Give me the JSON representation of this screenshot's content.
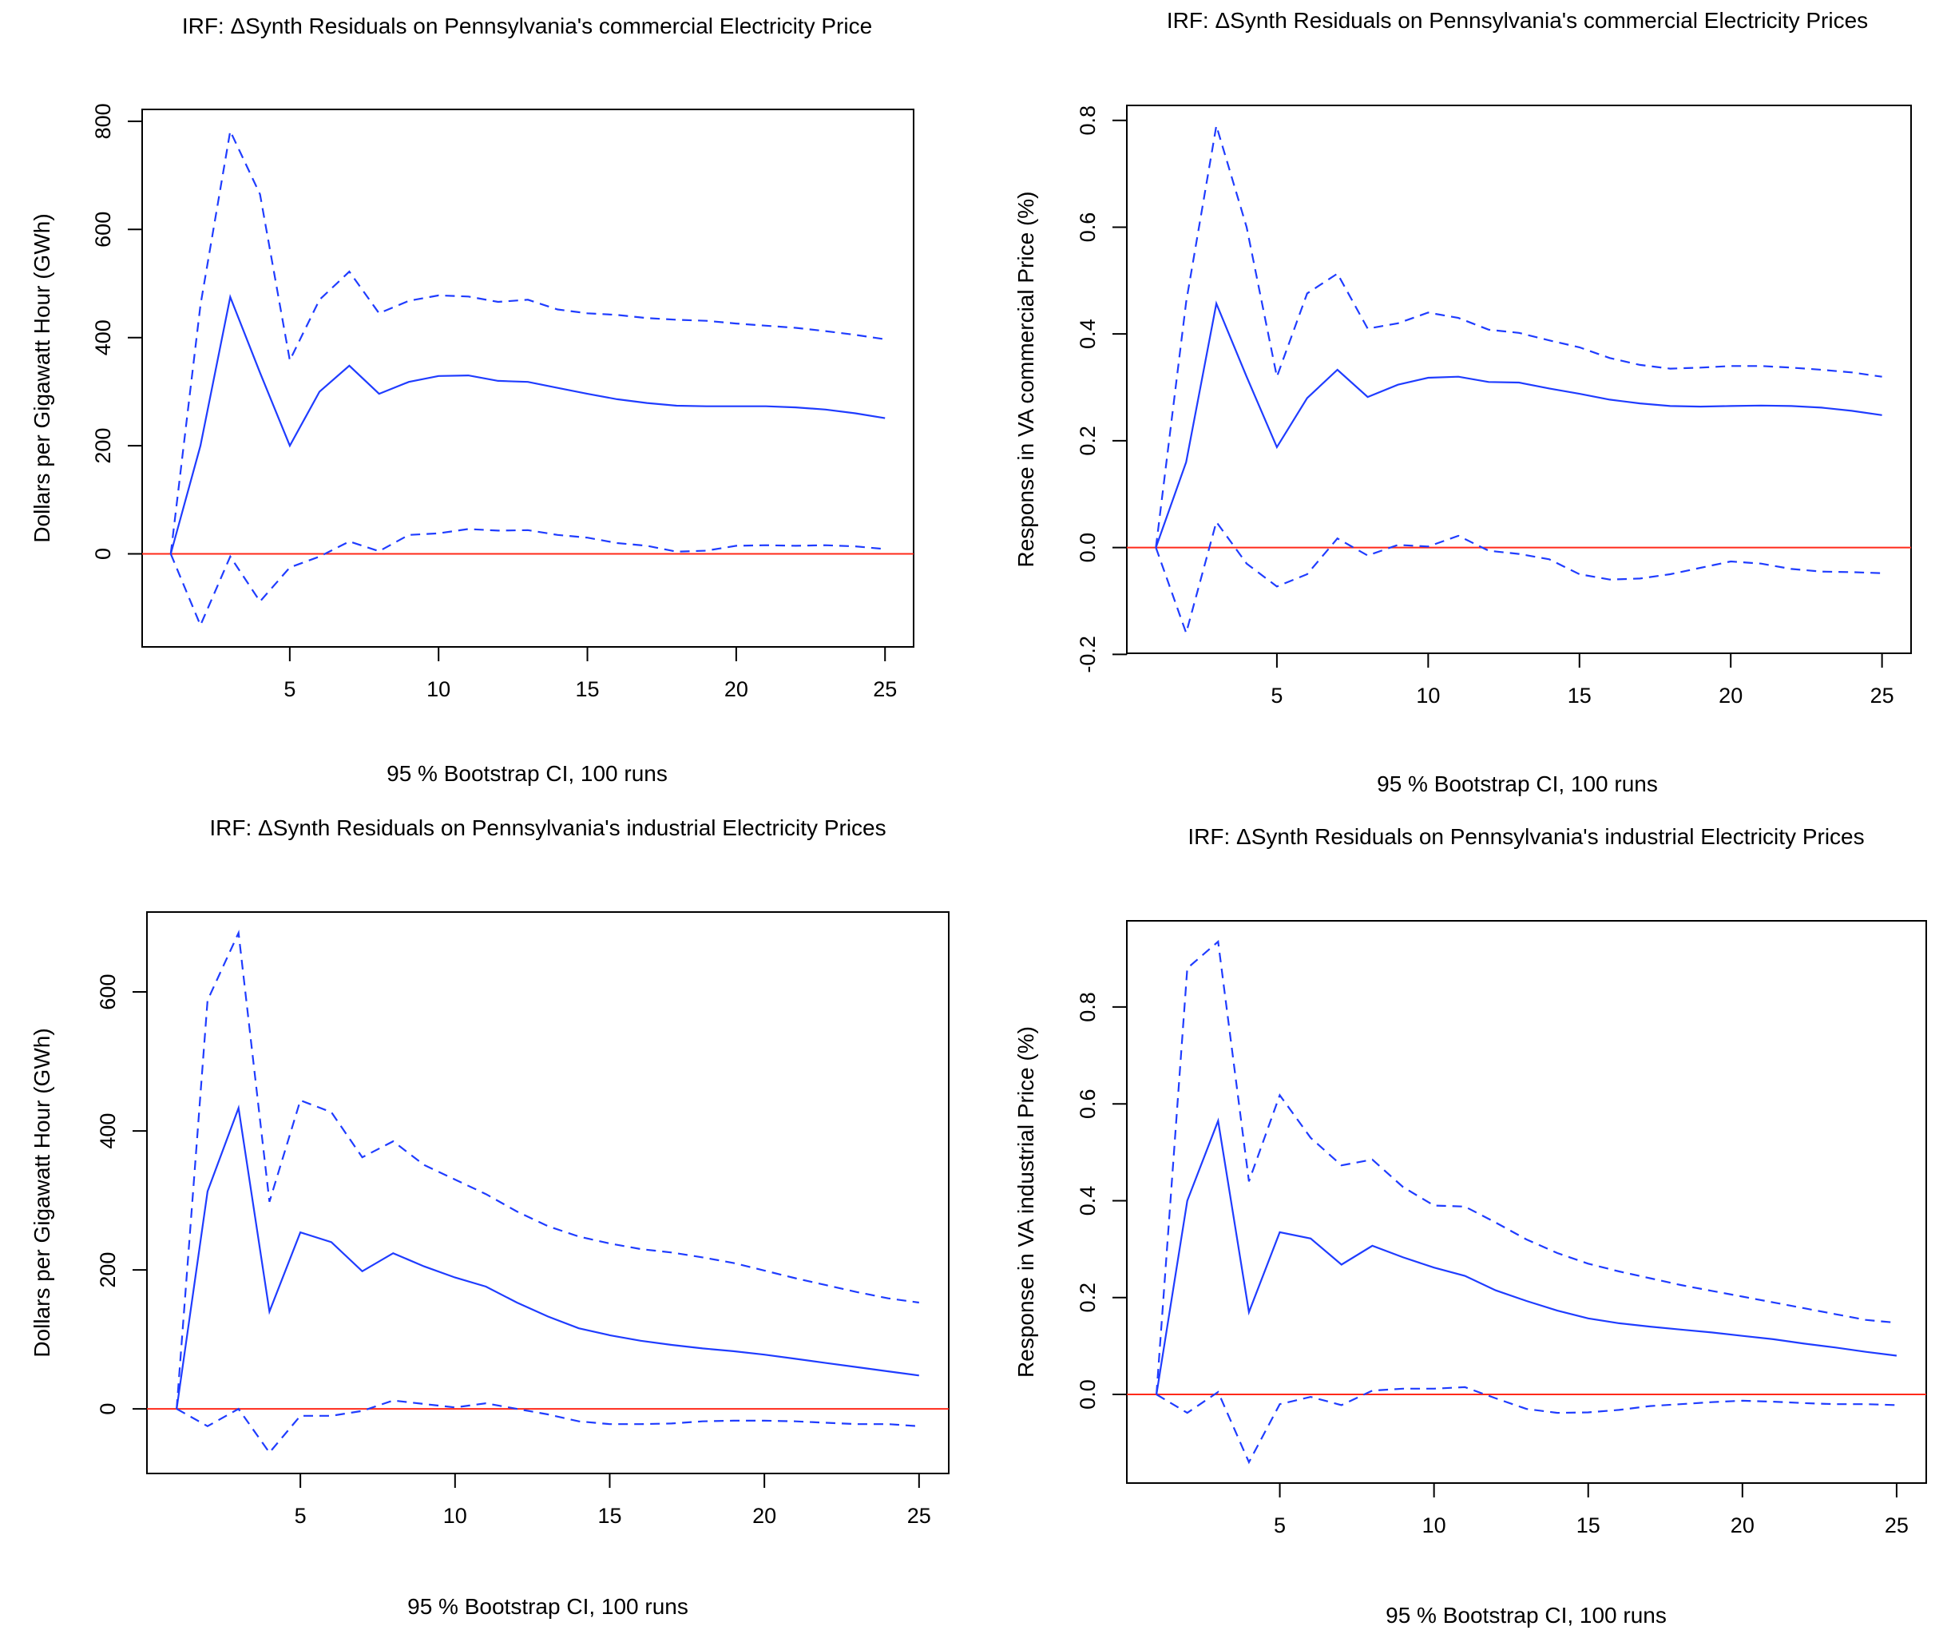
{
  "colors": {
    "irf": "#1f3cff",
    "ci": "#1f3cff",
    "zero": "#ff2a1a",
    "axis": "#000000"
  },
  "chart_data": [
    {
      "type": "line",
      "title": "IRF: ΔSynth Residuals on Pennsylvania's commercial Electricity Price",
      "xlabel": "95 % Bootstrap CI,  100 runs",
      "ylabel": "Dollars per Gigawatt Hour (GWh)",
      "xlim": [
        1,
        25
      ],
      "ylim": [
        -172,
        822
      ],
      "xticks": [
        5,
        10,
        15,
        20,
        25
      ],
      "yticks": [
        0,
        200,
        400,
        600,
        800
      ],
      "yticklabels": [
        "0",
        "200",
        "400",
        "600",
        "800"
      ],
      "x": [
        1,
        2,
        3,
        4,
        5,
        6,
        7,
        8,
        9,
        10,
        11,
        12,
        13,
        14,
        15,
        16,
        17,
        18,
        19,
        20,
        21,
        22,
        23,
        24,
        25
      ],
      "series": [
        {
          "style": "solid",
          "values": [
            0,
            200,
            475,
            335,
            200,
            300,
            348,
            296,
            318,
            329,
            330,
            320,
            318,
            307,
            296,
            286,
            279,
            274,
            273,
            273,
            273,
            271,
            267,
            260,
            251
          ]
        },
        {
          "style": "dashed",
          "values": [
            0,
            460,
            782,
            665,
            358,
            470,
            522,
            445,
            468,
            478,
            476,
            466,
            470,
            452,
            445,
            442,
            436,
            433,
            431,
            426,
            422,
            418,
            412,
            405,
            397
          ]
        },
        {
          "style": "dashed",
          "values": [
            0,
            -132,
            -5,
            -88,
            -25,
            -5,
            23,
            5,
            35,
            38,
            46,
            43,
            44,
            35,
            30,
            20,
            15,
            4,
            6,
            15,
            16,
            15,
            16,
            14,
            9
          ]
        }
      ],
      "hline": 0
    },
    {
      "type": "line",
      "title": "IRF: ΔSynth Residuals on Pennsylvania's commercial Electricity Prices",
      "xlabel": "95 % Bootstrap CI,  100 runs",
      "ylabel": "Response in VA commercial Price (%)",
      "xlim": [
        1,
        25
      ],
      "ylim": [
        -0.198,
        0.828
      ],
      "xticks": [
        5,
        10,
        15,
        20,
        25
      ],
      "yticks": [
        -0.2,
        0,
        0.2,
        0.4,
        0.6,
        0.8
      ],
      "yticklabels": [
        "-0.2",
        "0.0",
        "0.2",
        "0.4",
        "0.6",
        "0.8"
      ],
      "x": [
        1,
        2,
        3,
        4,
        5,
        6,
        7,
        8,
        9,
        10,
        11,
        12,
        13,
        14,
        15,
        16,
        17,
        18,
        19,
        20,
        21,
        22,
        23,
        24,
        25
      ],
      "series": [
        {
          "style": "solid",
          "values": [
            0,
            0.16,
            0.457,
            0.32,
            0.188,
            0.28,
            0.333,
            0.282,
            0.305,
            0.318,
            0.32,
            0.31,
            0.309,
            0.298,
            0.288,
            0.277,
            0.27,
            0.265,
            0.264,
            0.265,
            0.266,
            0.265,
            0.262,
            0.256,
            0.248
          ]
        },
        {
          "style": "dashed",
          "values": [
            0,
            0.46,
            0.79,
            0.6,
            0.32,
            0.476,
            0.513,
            0.41,
            0.42,
            0.44,
            0.43,
            0.408,
            0.402,
            0.388,
            0.375,
            0.355,
            0.342,
            0.335,
            0.337,
            0.34,
            0.34,
            0.337,
            0.333,
            0.328,
            0.32
          ]
        },
        {
          "style": "dashed",
          "values": [
            0,
            -0.16,
            0.048,
            -0.03,
            -0.073,
            -0.05,
            0.017,
            -0.015,
            0.005,
            0.002,
            0.022,
            -0.006,
            -0.012,
            -0.022,
            -0.05,
            -0.06,
            -0.058,
            -0.05,
            -0.038,
            -0.026,
            -0.03,
            -0.04,
            -0.045,
            -0.046,
            -0.048
          ]
        }
      ],
      "hline": 0
    },
    {
      "type": "line",
      "title": "IRF: ΔSynth Residuals on Pennsylvania's industrial Electricity Prices",
      "xlabel": "95 % Bootstrap CI,  100 runs",
      "ylabel": "Dollars per Gigawatt Hour (GWh)",
      "xlim": [
        1,
        25
      ],
      "ylim": [
        -93,
        715
      ],
      "xticks": [
        5,
        10,
        15,
        20,
        25
      ],
      "yticks": [
        0,
        200,
        400,
        600
      ],
      "yticklabels": [
        "0",
        "200",
        "400",
        "600"
      ],
      "x": [
        1,
        2,
        3,
        4,
        5,
        6,
        7,
        8,
        9,
        10,
        11,
        12,
        13,
        14,
        15,
        16,
        17,
        18,
        19,
        20,
        21,
        22,
        23,
        24,
        25
      ],
      "series": [
        {
          "style": "solid",
          "values": [
            0,
            313,
            433,
            140,
            254,
            240,
            198,
            224,
            205,
            189,
            176,
            153,
            133,
            116,
            106,
            98,
            92,
            87,
            83,
            78,
            72,
            66,
            60,
            54,
            48
          ]
        },
        {
          "style": "dashed",
          "values": [
            0,
            588,
            685,
            298,
            444,
            427,
            362,
            385,
            351,
            330,
            309,
            284,
            263,
            248,
            238,
            230,
            225,
            218,
            210,
            199,
            188,
            178,
            168,
            159,
            153
          ]
        },
        {
          "style": "dashed",
          "values": [
            0,
            -25,
            0,
            -63,
            -10,
            -10,
            -3,
            12,
            7,
            2,
            8,
            0,
            -8,
            -18,
            -22,
            -22,
            -21,
            -18,
            -17,
            -17,
            -18,
            -20,
            -22,
            -22,
            -25
          ]
        }
      ],
      "hline": 0
    },
    {
      "type": "line",
      "title": "IRF: ΔSynth Residuals on Pennsylvania's industrial Electricity Prices",
      "xlabel": "95 % Bootstrap CI,  100 runs",
      "ylabel": "Response in VA industrial Price (%)",
      "xlim": [
        1,
        25
      ],
      "ylim": [
        -0.183,
        0.978
      ],
      "xticks": [
        5,
        10,
        15,
        20,
        25
      ],
      "yticks": [
        0,
        0.2,
        0.4,
        0.6,
        0.8
      ],
      "yticklabels": [
        "0.0",
        "0.2",
        "0.4",
        "0.6",
        "0.8"
      ],
      "x": [
        1,
        2,
        3,
        4,
        5,
        6,
        7,
        8,
        9,
        10,
        11,
        12,
        13,
        14,
        15,
        16,
        17,
        18,
        19,
        20,
        21,
        22,
        23,
        24,
        25
      ],
      "series": [
        {
          "style": "solid",
          "values": [
            0,
            0.4,
            0.565,
            0.17,
            0.335,
            0.322,
            0.268,
            0.307,
            0.283,
            0.262,
            0.245,
            0.215,
            0.193,
            0.173,
            0.157,
            0.147,
            0.14,
            0.134,
            0.128,
            0.121,
            0.114,
            0.105,
            0.097,
            0.088,
            0.08
          ]
        },
        {
          "style": "dashed",
          "values": [
            0,
            0.88,
            0.935,
            0.44,
            0.618,
            0.53,
            0.473,
            0.485,
            0.428,
            0.39,
            0.388,
            0.355,
            0.32,
            0.292,
            0.27,
            0.254,
            0.24,
            0.226,
            0.214,
            0.202,
            0.19,
            0.178,
            0.166,
            0.154,
            0.148
          ]
        },
        {
          "style": "dashed",
          "values": [
            0,
            -0.038,
            0.005,
            -0.14,
            -0.02,
            -0.005,
            -0.022,
            0.008,
            0.012,
            0.012,
            0.015,
            -0.008,
            -0.03,
            -0.038,
            -0.037,
            -0.032,
            -0.024,
            -0.02,
            -0.016,
            -0.013,
            -0.015,
            -0.018,
            -0.02,
            -0.02,
            -0.022
          ]
        }
      ],
      "hline": 0
    }
  ]
}
